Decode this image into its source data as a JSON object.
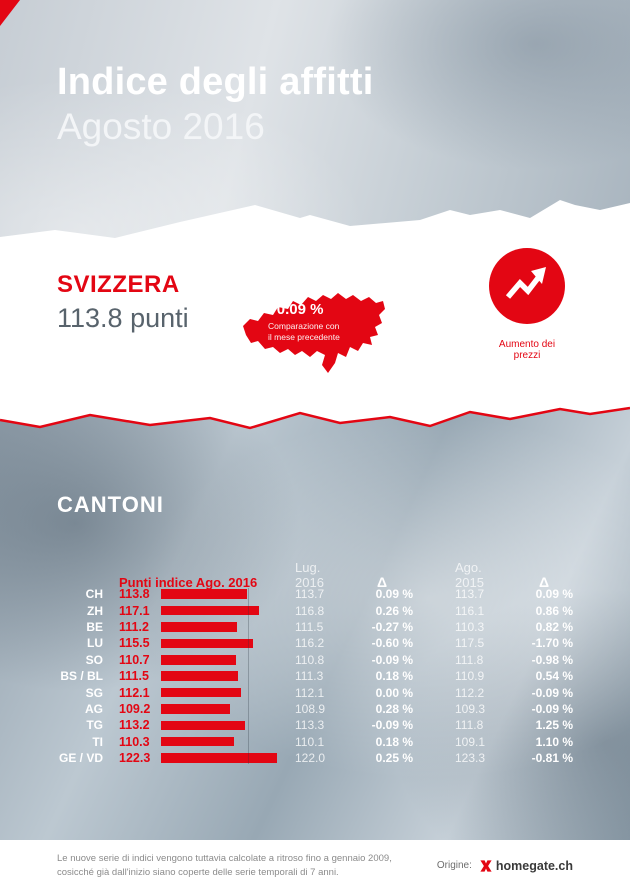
{
  "colors": {
    "accent": "#e30613"
  },
  "header": {
    "title": "Indice degli affitti",
    "subtitle": "Agosto 2016"
  },
  "switzerland": {
    "name": "SVIZZERA",
    "points": "113.8 punti",
    "change": "+0.09 %",
    "change_note_line1": "Comparazione con",
    "change_note_line2": "il mese precedente",
    "trend_label": "Aumento dei prezzi"
  },
  "cantons": {
    "section_title": "CANTONI",
    "col_current": "Punti indice Ago. 2016",
    "col_prev_month": "Lug. 2016",
    "col_delta_month": "Δ",
    "col_prev_year": "Ago. 2015",
    "col_delta_year": "Δ",
    "rows": [
      {
        "canton": "CH",
        "index": "113.8",
        "prev_month": "113.7",
        "delta_month": "0.09 %",
        "prev_year": "113.7",
        "delta_year": "0.09 %"
      },
      {
        "canton": "ZH",
        "index": "117.1",
        "prev_month": "116.8",
        "delta_month": "0.26 %",
        "prev_year": "116.1",
        "delta_year": "0.86 %"
      },
      {
        "canton": "BE",
        "index": "111.2",
        "prev_month": "111.5",
        "delta_month": "-0.27 %",
        "prev_year": "110.3",
        "delta_year": "0.82 %"
      },
      {
        "canton": "LU",
        "index": "115.5",
        "prev_month": "116.2",
        "delta_month": "-0.60 %",
        "prev_year": "117.5",
        "delta_year": "-1.70 %"
      },
      {
        "canton": "SO",
        "index": "110.7",
        "prev_month": "110.8",
        "delta_month": "-0.09 %",
        "prev_year": "111.8",
        "delta_year": "-0.98 %"
      },
      {
        "canton": "BS / BL",
        "index": "111.5",
        "prev_month": "111.3",
        "delta_month": "0.18 %",
        "prev_year": "110.9",
        "delta_year": "0.54 %"
      },
      {
        "canton": "SG",
        "index": "112.1",
        "prev_month": "112.1",
        "delta_month": "0.00 %",
        "prev_year": "112.2",
        "delta_year": "-0.09 %"
      },
      {
        "canton": "AG",
        "index": "109.2",
        "prev_month": "108.9",
        "delta_month": "0.28 %",
        "prev_year": "109.3",
        "delta_year": "-0.09 %"
      },
      {
        "canton": "TG",
        "index": "113.2",
        "prev_month": "113.3",
        "delta_month": "-0.09 %",
        "prev_year": "111.8",
        "delta_year": "1.25 %"
      },
      {
        "canton": "TI",
        "index": "110.3",
        "prev_month": "110.1",
        "delta_month": "0.18 %",
        "prev_year": "109.1",
        "delta_year": "1.10 %"
      },
      {
        "canton": "GE / VD",
        "index": "122.3",
        "prev_month": "122.0",
        "delta_month": "0.25 %",
        "prev_year": "123.3",
        "delta_year": "-0.81 %"
      }
    ]
  },
  "chart_data": {
    "type": "bar",
    "title": "Punti indice Ago. 2016",
    "categories": [
      "CH",
      "ZH",
      "BE",
      "LU",
      "SO",
      "BS / BL",
      "SG",
      "AG",
      "TG",
      "TI",
      "GE / VD"
    ],
    "series": [
      {
        "name": "Punti indice Ago. 2016",
        "values": [
          113.8,
          117.1,
          111.2,
          115.5,
          110.7,
          111.5,
          112.1,
          109.2,
          113.2,
          110.3,
          122.3
        ]
      },
      {
        "name": "Lug. 2016",
        "values": [
          113.7,
          116.8,
          111.5,
          116.2,
          110.8,
          111.3,
          112.1,
          108.9,
          113.3,
          110.1,
          122.0
        ]
      },
      {
        "name": "Δ vs Lug. 2016 (%)",
        "values": [
          0.09,
          0.26,
          -0.27,
          -0.6,
          -0.09,
          0.18,
          0.0,
          0.28,
          -0.09,
          0.18,
          0.25
        ]
      },
      {
        "name": "Ago. 2015",
        "values": [
          113.7,
          116.1,
          110.3,
          117.5,
          111.8,
          110.9,
          112.2,
          109.3,
          111.8,
          109.1,
          123.3
        ]
      },
      {
        "name": "Δ vs Ago. 2015 (%)",
        "values": [
          0.09,
          0.86,
          0.82,
          -1.7,
          -0.98,
          0.54,
          -0.09,
          -0.09,
          1.25,
          1.1,
          -0.81
        ]
      }
    ],
    "xlabel": "",
    "ylabel": "Punti indice",
    "xlim": [
      90,
      125
    ],
    "orientation": "horizontal",
    "bar_color": "#e30613",
    "grid": false,
    "legend_position": "none"
  },
  "footer": {
    "note_line1": "Le nuove serie di indici vengono tuttavia calcolate a ritroso fino a gennaio 2009,",
    "note_line2": "cosicché già dall'inizio siano coperte delle serie temporali di 7 anni.",
    "origin_label": "Origine:",
    "brand": "homegate.ch"
  }
}
